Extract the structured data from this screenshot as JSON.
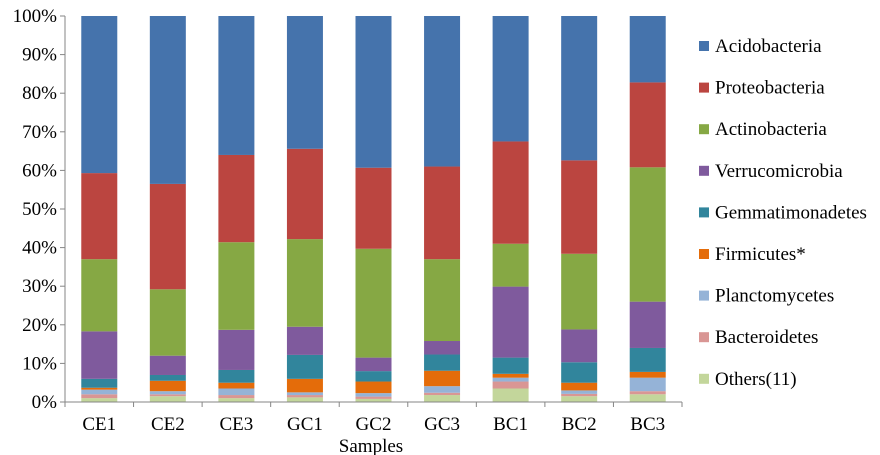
{
  "chart_data": {
    "type": "bar",
    "stacked": true,
    "percent": true,
    "title": "",
    "xlabel": "Samples",
    "ylabel": "",
    "ylim": [
      0,
      100
    ],
    "yticks": [
      "0%",
      "10%",
      "20%",
      "30%",
      "40%",
      "50%",
      "60%",
      "70%",
      "80%",
      "90%",
      "100%"
    ],
    "grid": false,
    "legend_position": "right",
    "categories": [
      "CE1",
      "CE2",
      "CE3",
      "GC1",
      "GC2",
      "GC3",
      "BC1",
      "BC2",
      "BC3"
    ],
    "series": [
      {
        "name": "Others(11)",
        "color": "#C3D69B",
        "values": [
          1.0,
          1.5,
          1.0,
          1.2,
          0.8,
          1.8,
          3.5,
          1.5,
          2.0
        ]
      },
      {
        "name": "Bacteroidetes",
        "color": "#D99694",
        "values": [
          1.0,
          0.5,
          0.8,
          0.6,
          0.6,
          0.6,
          1.8,
          0.6,
          0.8
        ]
      },
      {
        "name": "Planctomycetes",
        "color": "#95B3D7",
        "values": [
          1.2,
          0.8,
          1.7,
          0.7,
          0.9,
          1.7,
          1.0,
          0.9,
          3.5
        ]
      },
      {
        "name": "Firmicutes*",
        "color": "#E46C0A",
        "values": [
          0.5,
          2.7,
          1.5,
          3.5,
          3.0,
          4.0,
          1.0,
          2.0,
          1.5
        ]
      },
      {
        "name": "Gemmatimonadetes",
        "color": "#31859C",
        "values": [
          2.3,
          1.5,
          3.3,
          6.2,
          2.7,
          4.2,
          4.2,
          5.3,
          6.2
        ]
      },
      {
        "name": "Verrucomicrobia",
        "color": "#7F5A9D",
        "values": [
          12.3,
          5.0,
          10.4,
          7.3,
          3.5,
          3.5,
          18.4,
          8.5,
          12.0
        ]
      },
      {
        "name": "Actinobacteria",
        "color": "#86A844",
        "values": [
          18.7,
          17.2,
          22.7,
          22.7,
          28.2,
          21.2,
          11.1,
          19.6,
          34.8
        ]
      },
      {
        "name": "Proteobacteria",
        "color": "#BB4540",
        "values": [
          22.3,
          27.3,
          22.6,
          23.4,
          21.0,
          24.0,
          26.5,
          24.2,
          22.0
        ]
      },
      {
        "name": "Acidobacteria",
        "color": "#4573AC",
        "values": [
          40.7,
          43.5,
          36.0,
          34.4,
          39.3,
          39.0,
          32.5,
          37.4,
          17.2
        ]
      }
    ],
    "legend_order": [
      "Acidobacteria",
      "Proteobacteria",
      "Actinobacteria",
      "Verrucomicrobia",
      "Gemmatimonadetes",
      "Firmicutes*",
      "Planctomycetes",
      "Bacteroidetes",
      "Others(11)"
    ]
  }
}
